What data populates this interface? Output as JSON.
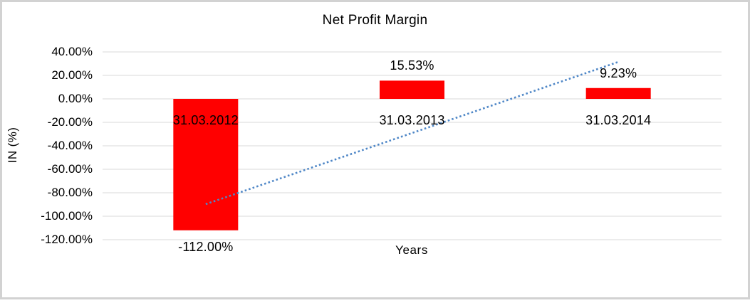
{
  "frame": {
    "border_color": "#d2d2d2",
    "background": "#ffffff"
  },
  "chart_data": {
    "type": "bar",
    "title": "Net Profit Margin",
    "xlabel": "Years",
    "ylabel": "IN (%)",
    "categories": [
      "31.03.2012",
      "31.03.2013",
      "31.03.2014"
    ],
    "series": [
      {
        "name": "Net Profit Margin",
        "values": [
          -112.0,
          15.53,
          9.23
        ]
      }
    ],
    "data_labels": [
      "-112.00%",
      "15.53%",
      "9.23%"
    ],
    "ytick_labels": [
      "40.00%",
      "20.00%",
      "0.00%",
      "-20.00%",
      "-40.00%",
      "-60.00%",
      "-80.00%",
      "-100.00%",
      "-120.00%"
    ],
    "ytick_values": [
      40,
      20,
      0,
      -20,
      -40,
      -60,
      -80,
      -100,
      -120
    ],
    "ylim": [
      -120,
      40
    ],
    "grid": true,
    "legend_position": "none",
    "bar_color": "#ff0000",
    "gridline_color": "#d9d9d9",
    "text_color": "#000000",
    "trendline": {
      "type": "linear",
      "style": "dotted",
      "color": "#4f87c7",
      "start_value_pct": -89.7,
      "end_value_pct": 31.5
    }
  }
}
